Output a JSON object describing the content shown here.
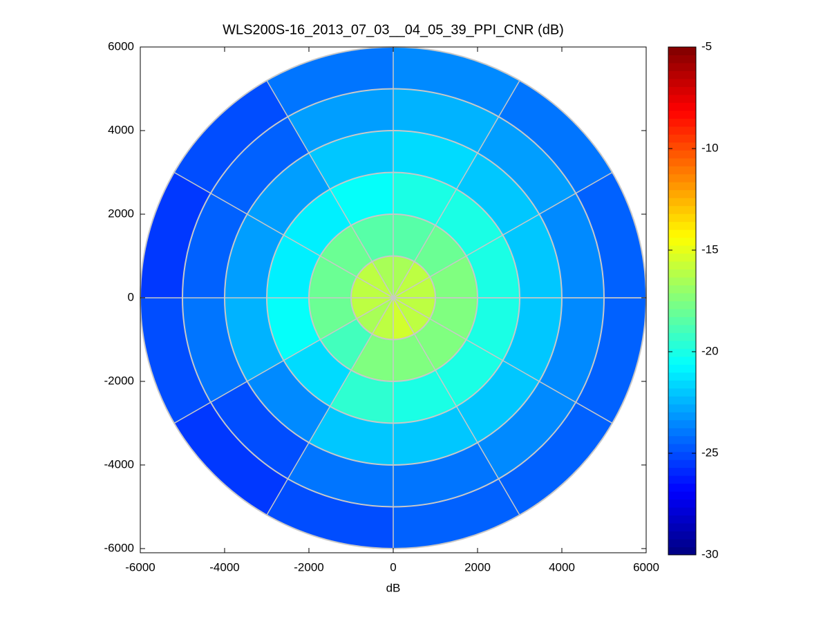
{
  "chart_data": {
    "type": "polar_heatmap",
    "title": "WLS200S-16_2013_07_03__04_05_39_PPI_CNR (dB)",
    "xlabel": "dB",
    "xlim": [
      -6000,
      6000
    ],
    "ylim": [
      -6100,
      6000
    ],
    "xticks": [
      -6000,
      -4000,
      -2000,
      0,
      2000,
      4000,
      6000
    ],
    "yticks": [
      -6000,
      -4000,
      -2000,
      0,
      2000,
      4000,
      6000
    ],
    "r_edges": [
      0,
      1000,
      2000,
      3000,
      4000,
      5000,
      6000
    ],
    "theta_edges": [
      0,
      30,
      60,
      90,
      120,
      150,
      180,
      210,
      240,
      270,
      300,
      330,
      360
    ],
    "values": [
      [
        -16,
        -16,
        -16.5,
        -16.5,
        -16,
        -16,
        -16,
        -16.5,
        -16,
        -15.5,
        -16,
        -16
      ],
      [
        -17.5,
        -18,
        -18.5,
        -18.5,
        -18,
        -18,
        -18,
        -19,
        -17.5,
        -17.5,
        -17.5,
        -17.5
      ],
      [
        -20,
        -20,
        -20,
        -20.5,
        -21,
        -21,
        -20.5,
        -21.5,
        -19.5,
        -20,
        -20,
        -20
      ],
      [
        -22,
        -22,
        -21.5,
        -22,
        -23,
        -23,
        -22.5,
        -23.5,
        -22,
        -22,
        -22,
        -22
      ],
      [
        -23.5,
        -23,
        -22.5,
        -23,
        -24.5,
        -24.5,
        -24,
        -25,
        -24,
        -24,
        -23.5,
        -23.5
      ],
      [
        -24.5,
        -24,
        -23.5,
        -24,
        -25,
        -25.5,
        -25,
        -25.5,
        -25,
        -24.5,
        -24.5,
        -24.5
      ]
    ],
    "colormap": "jet",
    "clim": [
      -30,
      -5
    ],
    "cticks": [
      -30,
      -25,
      -20,
      -15,
      -10,
      -5
    ]
  }
}
